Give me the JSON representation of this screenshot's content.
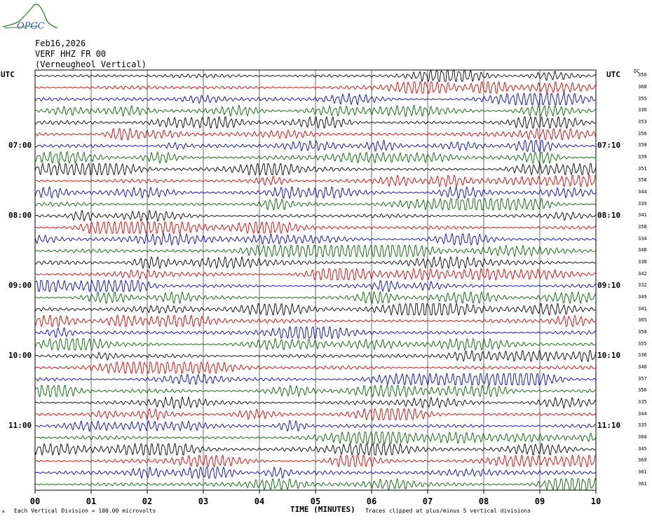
{
  "logo": {
    "text": "OPGC"
  },
  "header": {
    "date": "Feb16,2026",
    "channel": "VERF HHZ FR 00",
    "station": "(Verneugheol Vertical)"
  },
  "labels": {
    "utc_left": "UTC",
    "utc_right": "UTC",
    "dc": "DC",
    "xlabel": "TIME (MINUTES)",
    "scale_note": "Each Vertical Division =  100.00 microvolts",
    "clip_note": "Traces clipped at plus/minus 5 vertical divisions",
    "corner_mark": "a"
  },
  "chart_data": {
    "type": "line",
    "xlabel": "TIME (MINUTES)",
    "x_ticks": [
      "00",
      "01",
      "02",
      "03",
      "04",
      "05",
      "06",
      "07",
      "08",
      "09",
      "10"
    ],
    "xlim": [
      0,
      10
    ],
    "trace_colors": [
      "#000000",
      "#e00000",
      "#0000d0",
      "#006400"
    ],
    "left_time_labels": [
      {
        "row": 6,
        "text": "07:00"
      },
      {
        "row": 12,
        "text": "08:00"
      },
      {
        "row": 18,
        "text": "09:00"
      },
      {
        "row": 24,
        "text": "10:00"
      },
      {
        "row": 30,
        "text": "11:00"
      }
    ],
    "right_time_labels": [
      {
        "row": 6,
        "text": "07:10"
      },
      {
        "row": 12,
        "text": "08:10"
      },
      {
        "row": 18,
        "text": "09:10"
      },
      {
        "row": 24,
        "text": "10:10"
      },
      {
        "row": 30,
        "text": "11:10"
      }
    ],
    "dc_offsets": [
      "350",
      "368",
      "355",
      "336",
      "353",
      "356",
      "350",
      "339",
      "351",
      "358",
      "344",
      "339",
      "341",
      "358",
      "334",
      "348",
      "338",
      "342",
      "332",
      "349",
      "341",
      "365",
      "350",
      "355",
      "336",
      "346",
      "357",
      "356",
      "335",
      "344",
      "335",
      "360",
      "345",
      "369",
      "361",
      "361"
    ],
    "grid": true
  }
}
